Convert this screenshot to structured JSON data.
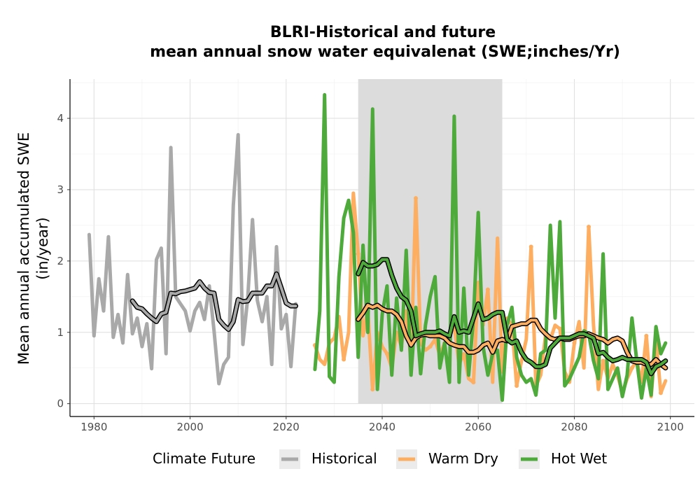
{
  "chart_data": {
    "type": "line",
    "title_line1": "BLRI-Historical and future",
    "title_line2": "mean annual snow water equivalenat (SWE;inches/Yr)",
    "xlabel": "",
    "ylabel_line1": "Mean annual accumulated SWE",
    "ylabel_line2": "(in/year)",
    "xlim": [
      1975,
      2105
    ],
    "ylim": [
      -0.18,
      4.55
    ],
    "x_ticks": [
      1980,
      2000,
      2020,
      2040,
      2060,
      2080,
      2100
    ],
    "y_ticks": [
      0,
      1,
      2,
      3,
      4
    ],
    "grid": true,
    "shaded_period": [
      2035,
      2065
    ],
    "legend": {
      "title": "Climate Future",
      "position": "bottom",
      "entries": [
        "Historical",
        "Warm Dry",
        "Hot Wet"
      ]
    },
    "colors": {
      "Historical": "#a9a9a9",
      "Warm Dry": "#fdae61",
      "Hot Wet": "#4daa3b",
      "smooth_outline": "#000000",
      "shade": "#dcdcdc"
    },
    "series": [
      {
        "name": "Historical",
        "x": [
          1979,
          1980,
          1981,
          1982,
          1983,
          1984,
          1985,
          1986,
          1987,
          1988,
          1989,
          1990,
          1991,
          1992,
          1993,
          1994,
          1995,
          1996,
          1997,
          1998,
          1999,
          2000,
          2001,
          2002,
          2003,
          2004,
          2005,
          2006,
          2007,
          2008,
          2009,
          2010,
          2011,
          2012,
          2013,
          2014,
          2015,
          2016,
          2017,
          2018,
          2019,
          2020,
          2021,
          2022
        ],
        "values": [
          2.37,
          0.95,
          1.75,
          1.3,
          2.34,
          0.93,
          1.25,
          0.85,
          1.81,
          0.98,
          1.2,
          0.8,
          1.12,
          0.49,
          2.02,
          2.18,
          0.7,
          3.59,
          1.5,
          1.4,
          1.3,
          1.02,
          1.3,
          1.42,
          1.18,
          1.65,
          1.02,
          0.28,
          0.55,
          0.65,
          2.78,
          3.77,
          0.83,
          1.48,
          2.58,
          1.45,
          1.15,
          1.5,
          0.55,
          2.2,
          1.05,
          1.25,
          0.52,
          1.4
        ]
      },
      {
        "name": "Historical smoothed",
        "x": [
          1988,
          1989,
          1990,
          1991,
          1992,
          1993,
          1994,
          1995,
          1996,
          1997,
          1998,
          1999,
          2000,
          2001,
          2002,
          2003,
          2004,
          2005,
          2006,
          2007,
          2008,
          2009,
          2010,
          2011,
          2012,
          2013,
          2014,
          2015,
          2016,
          2017,
          2018,
          2019,
          2020,
          2021,
          2022
        ],
        "values": [
          1.44,
          1.35,
          1.33,
          1.26,
          1.2,
          1.15,
          1.26,
          1.28,
          1.55,
          1.54,
          1.57,
          1.58,
          1.6,
          1.62,
          1.71,
          1.62,
          1.56,
          1.55,
          1.18,
          1.1,
          1.04,
          1.15,
          1.46,
          1.43,
          1.44,
          1.55,
          1.55,
          1.55,
          1.65,
          1.65,
          1.82,
          1.62,
          1.41,
          1.37,
          1.37
        ]
      },
      {
        "name": "Warm Dry",
        "x": [
          2026,
          2027,
          2028,
          2029,
          2030,
          2031,
          2032,
          2033,
          2034,
          2035,
          2036,
          2037,
          2038,
          2039,
          2040,
          2041,
          2042,
          2043,
          2044,
          2045,
          2046,
          2047,
          2048,
          2049,
          2050,
          2051,
          2052,
          2053,
          2054,
          2055,
          2056,
          2057,
          2058,
          2059,
          2060,
          2061,
          2062,
          2063,
          2064,
          2065,
          2066,
          2067,
          2068,
          2069,
          2070,
          2071,
          2072,
          2073,
          2074,
          2075,
          2076,
          2077,
          2078,
          2079,
          2080,
          2081,
          2082,
          2083,
          2084,
          2085,
          2086,
          2087,
          2088,
          2089,
          2090,
          2091,
          2092,
          2093,
          2094,
          2095,
          2096,
          2097,
          2098,
          2099
        ],
        "values": [
          0.82,
          0.62,
          0.55,
          0.85,
          0.92,
          1.22,
          0.62,
          1.0,
          2.95,
          2.1,
          0.95,
          1.32,
          0.2,
          1.0,
          0.8,
          0.7,
          0.5,
          1.0,
          0.8,
          1.3,
          0.6,
          2.88,
          0.85,
          0.75,
          0.8,
          0.9,
          0.68,
          0.85,
          0.95,
          1.1,
          0.55,
          0.7,
          0.35,
          0.3,
          1.7,
          1.1,
          1.6,
          0.3,
          2.32,
          0.45,
          1.2,
          1.1,
          0.25,
          0.6,
          0.9,
          2.2,
          0.25,
          0.4,
          0.95,
          0.9,
          1.1,
          1.05,
          0.45,
          0.3,
          0.85,
          1.15,
          0.5,
          2.48,
          1.1,
          0.2,
          0.6,
          0.35,
          0.55,
          0.4,
          0.15,
          0.35,
          0.5,
          0.6,
          0.3,
          0.95,
          0.1,
          0.9,
          0.15,
          0.32
        ]
      },
      {
        "name": "Warm Dry smoothed",
        "x": [
          2035,
          2036,
          2037,
          2038,
          2039,
          2040,
          2041,
          2042,
          2043,
          2044,
          2045,
          2046,
          2047,
          2048,
          2049,
          2050,
          2051,
          2052,
          2053,
          2054,
          2055,
          2056,
          2057,
          2058,
          2059,
          2060,
          2061,
          2062,
          2063,
          2064,
          2065,
          2066,
          2067,
          2068,
          2069,
          2070,
          2071,
          2072,
          2073,
          2074,
          2075,
          2076,
          2077,
          2078,
          2079,
          2080,
          2081,
          2082,
          2083,
          2084,
          2085,
          2086,
          2087,
          2088,
          2089,
          2090,
          2091,
          2092,
          2093,
          2094,
          2095,
          2096,
          2097,
          2098,
          2099
        ],
        "values": [
          1.18,
          1.27,
          1.38,
          1.35,
          1.38,
          1.33,
          1.3,
          1.3,
          1.25,
          1.15,
          0.95,
          0.82,
          0.92,
          0.96,
          0.97,
          0.95,
          0.95,
          0.95,
          0.92,
          0.85,
          0.82,
          0.8,
          0.8,
          0.72,
          0.72,
          0.75,
          0.82,
          0.85,
          0.72,
          0.88,
          0.9,
          0.88,
          1.08,
          1.1,
          1.12,
          1.12,
          1.17,
          1.17,
          1.05,
          0.98,
          0.92,
          0.9,
          0.92,
          0.9,
          0.9,
          0.93,
          0.95,
          0.95,
          0.98,
          0.95,
          0.92,
          0.9,
          0.85,
          0.9,
          0.92,
          0.88,
          0.72,
          0.6,
          0.58,
          0.58,
          0.55,
          0.55,
          0.62,
          0.55,
          0.5
        ]
      },
      {
        "name": "Hot Wet",
        "x": [
          2026,
          2027,
          2028,
          2029,
          2030,
          2031,
          2032,
          2033,
          2034,
          2035,
          2036,
          2037,
          2038,
          2039,
          2040,
          2041,
          2042,
          2043,
          2044,
          2045,
          2046,
          2047,
          2048,
          2049,
          2050,
          2051,
          2052,
          2053,
          2054,
          2055,
          2056,
          2057,
          2058,
          2059,
          2060,
          2061,
          2062,
          2063,
          2064,
          2065,
          2066,
          2067,
          2068,
          2069,
          2070,
          2071,
          2072,
          2073,
          2074,
          2075,
          2076,
          2077,
          2078,
          2079,
          2080,
          2081,
          2082,
          2083,
          2084,
          2085,
          2086,
          2087,
          2088,
          2089,
          2090,
          2091,
          2092,
          2093,
          2094,
          2095,
          2096,
          2097,
          2098,
          2099
        ],
        "values": [
          0.48,
          1.3,
          4.33,
          0.38,
          0.3,
          1.78,
          2.6,
          2.85,
          2.4,
          0.65,
          2.22,
          1.0,
          4.13,
          0.2,
          1.25,
          1.65,
          0.4,
          1.48,
          0.75,
          2.15,
          0.4,
          1.35,
          0.42,
          1.1,
          1.5,
          1.78,
          0.5,
          0.85,
          0.3,
          4.03,
          0.3,
          1.62,
          0.4,
          1.2,
          2.68,
          0.8,
          0.4,
          0.7,
          0.75,
          0.05,
          1.1,
          1.35,
          0.65,
          0.4,
          0.3,
          0.35,
          0.12,
          0.7,
          0.75,
          2.5,
          1.2,
          2.55,
          0.25,
          0.35,
          0.5,
          0.65,
          1.02,
          0.98,
          0.6,
          0.35,
          2.1,
          0.2,
          0.35,
          0.5,
          0.1,
          0.4,
          1.2,
          0.6,
          0.08,
          0.5,
          0.12,
          1.08,
          0.7,
          0.85
        ]
      },
      {
        "name": "Hot Wet smoothed",
        "x": [
          2035,
          2036,
          2037,
          2038,
          2039,
          2040,
          2041,
          2042,
          2043,
          2044,
          2045,
          2046,
          2047,
          2048,
          2049,
          2050,
          2051,
          2052,
          2053,
          2054,
          2055,
          2056,
          2057,
          2058,
          2059,
          2060,
          2061,
          2062,
          2063,
          2064,
          2065,
          2066,
          2067,
          2068,
          2069,
          2070,
          2071,
          2072,
          2073,
          2074,
          2075,
          2076,
          2077,
          2078,
          2079,
          2080,
          2081,
          2082,
          2083,
          2084,
          2085,
          2086,
          2087,
          2088,
          2089,
          2090,
          2091,
          2092,
          2093,
          2094,
          2095,
          2096,
          2097,
          2098,
          2099
        ],
        "values": [
          1.82,
          1.98,
          1.93,
          1.93,
          1.95,
          2.02,
          2.02,
          1.8,
          1.62,
          1.5,
          1.45,
          1.3,
          0.95,
          0.98,
          1.0,
          1.0,
          1.0,
          1.02,
          0.98,
          0.95,
          1.22,
          1.0,
          1.02,
          1.0,
          1.2,
          1.4,
          1.18,
          1.2,
          1.25,
          1.28,
          1.28,
          0.9,
          0.85,
          0.88,
          0.72,
          0.62,
          0.58,
          0.52,
          0.52,
          0.55,
          0.78,
          0.85,
          0.92,
          0.92,
          0.92,
          0.95,
          0.98,
          0.98,
          0.95,
          0.92,
          0.7,
          0.72,
          0.65,
          0.6,
          0.62,
          0.65,
          0.62,
          0.62,
          0.62,
          0.62,
          0.58,
          0.42,
          0.52,
          0.55,
          0.6
        ]
      }
    ]
  }
}
